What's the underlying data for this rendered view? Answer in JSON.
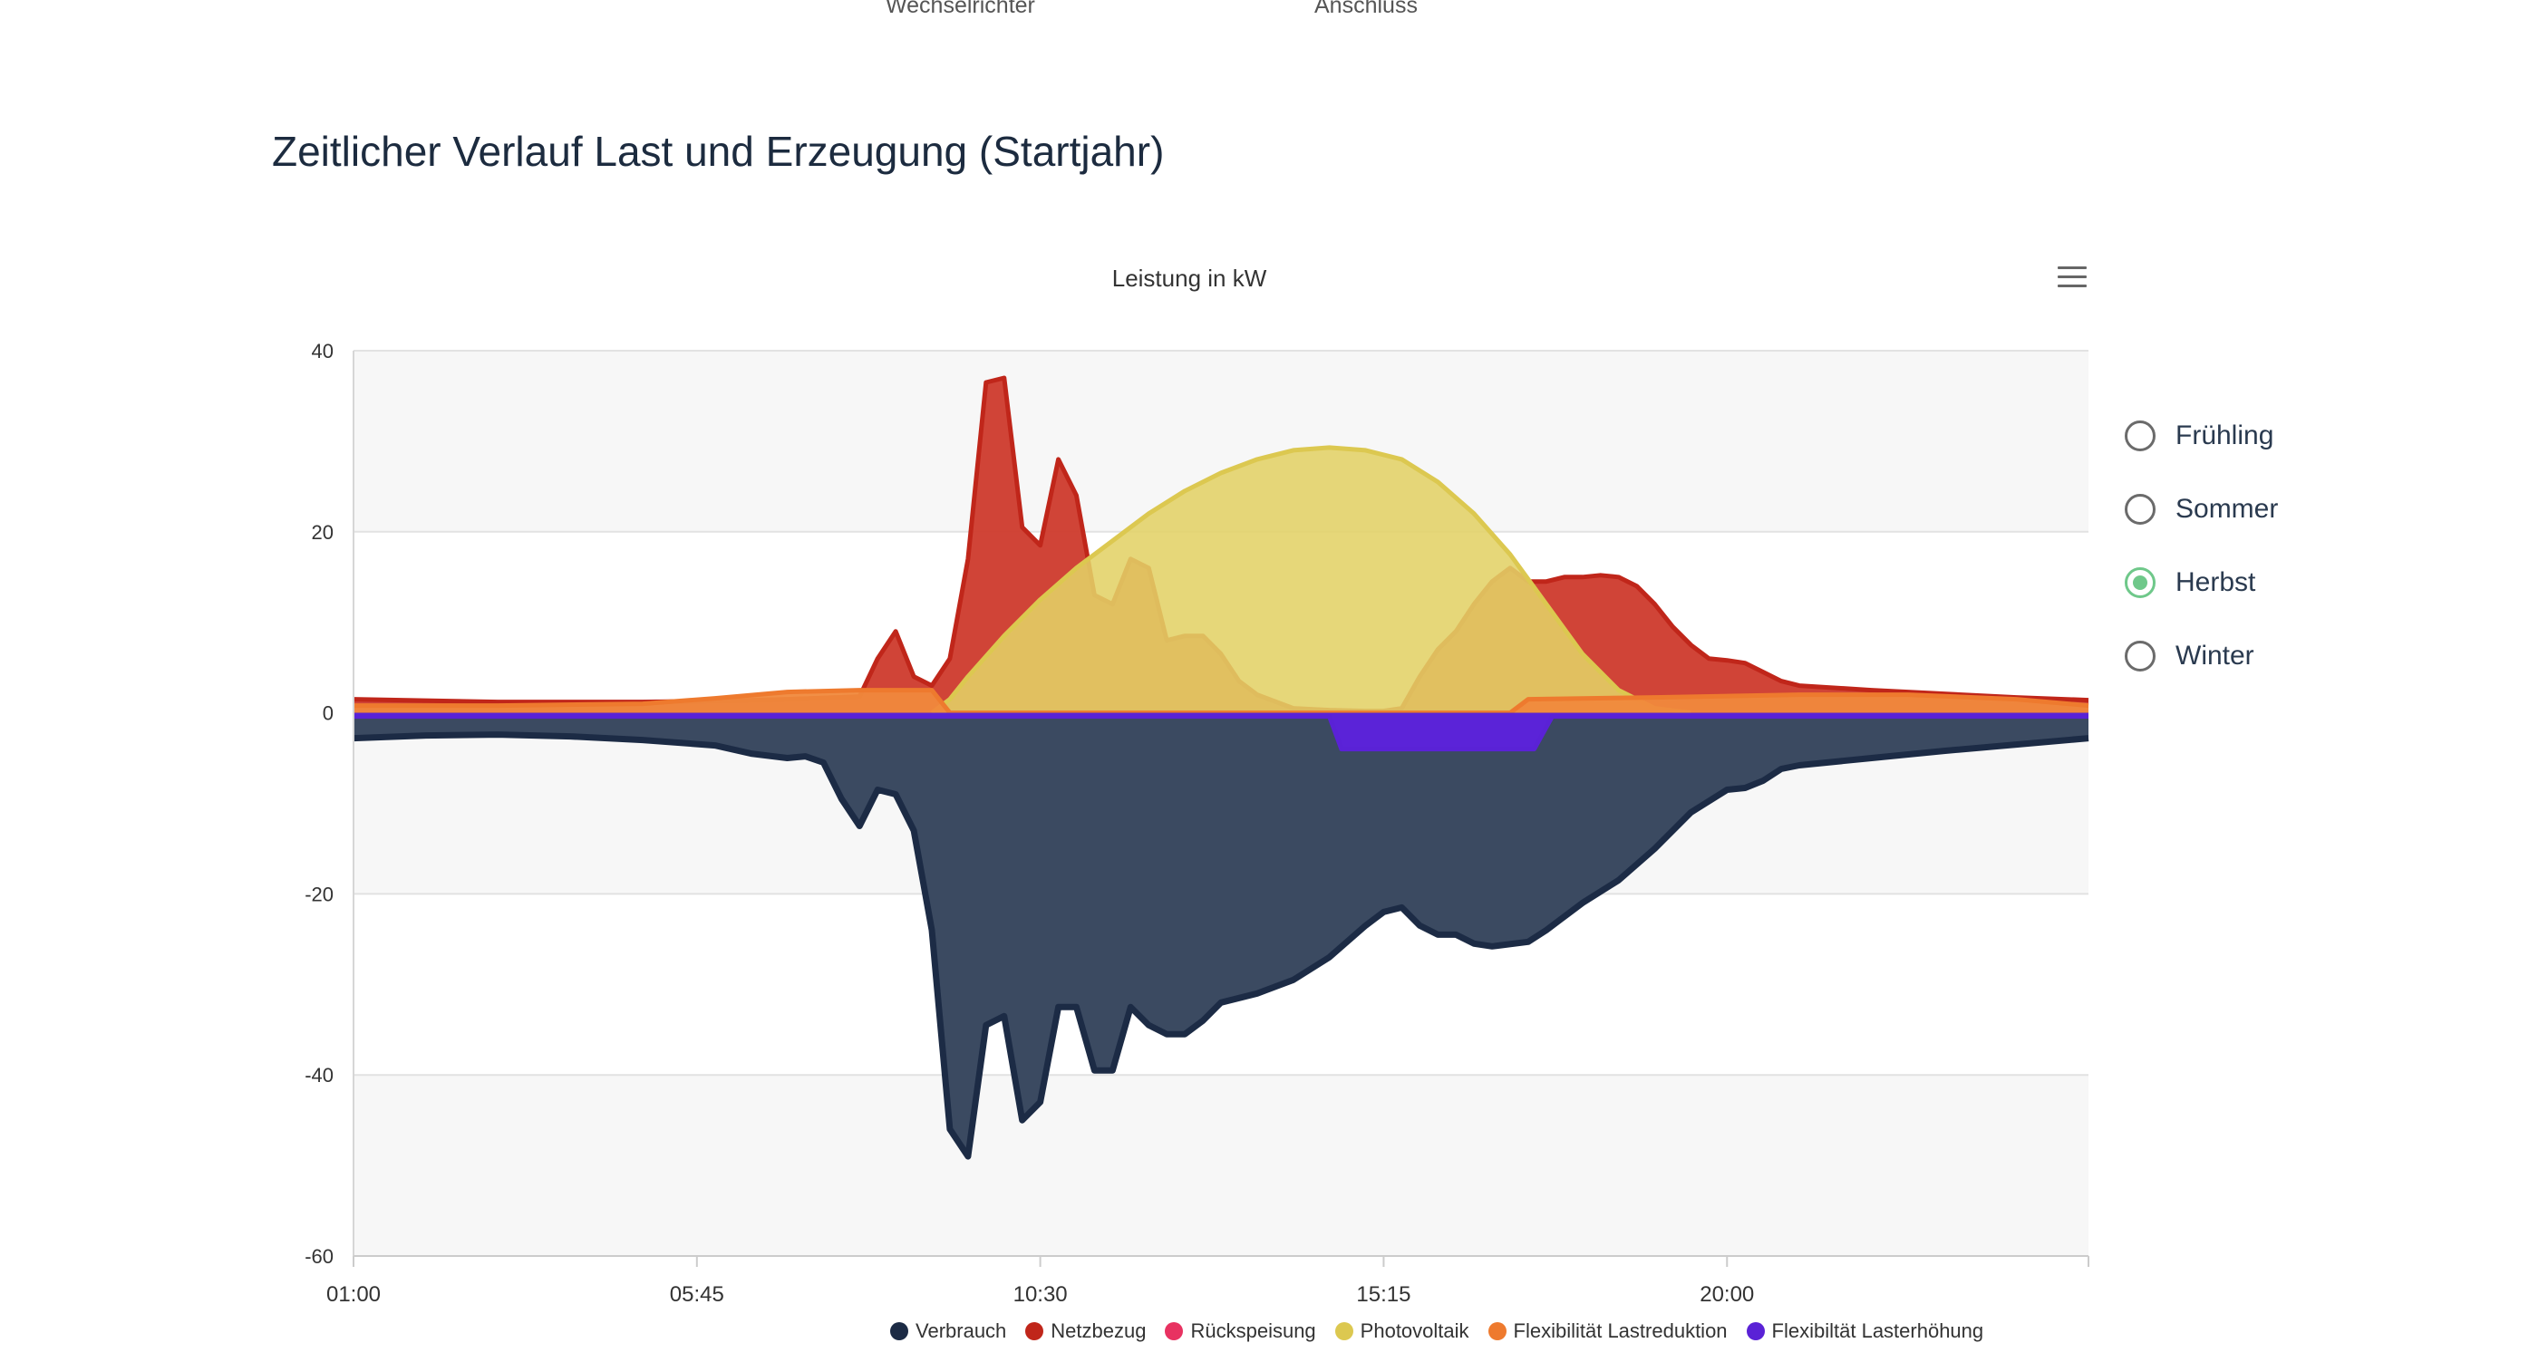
{
  "header": {
    "top_label_1": "Wechselrichter",
    "top_label_2": "Anschluss",
    "section_title": "Zeitlicher Verlauf Last und Erzeugung (Startjahr)"
  },
  "menu": {
    "icon": "hamburger-menu-icon"
  },
  "season_selector": {
    "options": [
      {
        "label": "Frühling",
        "checked": false
      },
      {
        "label": "Sommer",
        "checked": false
      },
      {
        "label": "Herbst",
        "checked": true
      },
      {
        "label": "Winter",
        "checked": false
      }
    ],
    "selected": "Herbst",
    "checked_color": "#6fc88a"
  },
  "chart_data": {
    "type": "area",
    "title": "Leistung in kW",
    "xlabel": "",
    "ylabel": "",
    "ylim": [
      -60,
      40
    ],
    "yticks": [
      40,
      20,
      0,
      -20,
      -40,
      -60
    ],
    "xlim": [
      0,
      1440
    ],
    "xticks": [
      {
        "t": 0,
        "label": "01:00"
      },
      {
        "t": 285,
        "label": "05:45"
      },
      {
        "t": 570,
        "label": "10:30"
      },
      {
        "t": 855,
        "label": "15:15"
      },
      {
        "t": 1140,
        "label": "20:00"
      }
    ],
    "grid": true,
    "legend_position": "bottom-right",
    "x_unit": "minutes since 01:00",
    "series": [
      {
        "name": "Verbrauch",
        "color": "#1c2b45",
        "fill": "#3b4a61",
        "points": [
          [
            0,
            -2.8
          ],
          [
            60,
            -2.5
          ],
          [
            120,
            -2.4
          ],
          [
            180,
            -2.6
          ],
          [
            240,
            -3.0
          ],
          [
            300,
            -3.6
          ],
          [
            330,
            -4.5
          ],
          [
            360,
            -5.0
          ],
          [
            375,
            -4.8
          ],
          [
            390,
            -5.5
          ],
          [
            405,
            -9.5
          ],
          [
            420,
            -12.5
          ],
          [
            435,
            -8.5
          ],
          [
            450,
            -9.0
          ],
          [
            465,
            -13.0
          ],
          [
            480,
            -24.0
          ],
          [
            495,
            -46.0
          ],
          [
            510,
            -49.0
          ],
          [
            525,
            -34.5
          ],
          [
            540,
            -33.5
          ],
          [
            555,
            -45.0
          ],
          [
            570,
            -43.0
          ],
          [
            585,
            -32.5
          ],
          [
            600,
            -32.5
          ],
          [
            615,
            -39.5
          ],
          [
            630,
            -39.5
          ],
          [
            645,
            -32.5
          ],
          [
            660,
            -34.5
          ],
          [
            675,
            -35.5
          ],
          [
            690,
            -35.5
          ],
          [
            705,
            -34.0
          ],
          [
            720,
            -32.0
          ],
          [
            750,
            -31.0
          ],
          [
            780,
            -29.5
          ],
          [
            810,
            -27.0
          ],
          [
            840,
            -23.5
          ],
          [
            855,
            -22.0
          ],
          [
            870,
            -21.5
          ],
          [
            885,
            -23.5
          ],
          [
            900,
            -24.5
          ],
          [
            915,
            -24.5
          ],
          [
            930,
            -25.5
          ],
          [
            945,
            -25.8
          ],
          [
            975,
            -25.3
          ],
          [
            990,
            -24.0
          ],
          [
            1005,
            -22.5
          ],
          [
            1020,
            -21.0
          ],
          [
            1050,
            -18.5
          ],
          [
            1080,
            -15.0
          ],
          [
            1110,
            -11.0
          ],
          [
            1140,
            -8.5
          ],
          [
            1155,
            -8.3
          ],
          [
            1170,
            -7.5
          ],
          [
            1185,
            -6.2
          ],
          [
            1200,
            -5.8
          ],
          [
            1260,
            -5.0
          ],
          [
            1320,
            -4.2
          ],
          [
            1380,
            -3.5
          ],
          [
            1440,
            -2.8
          ]
        ]
      },
      {
        "name": "Netzbezug",
        "color": "#c0261a",
        "fill": "#cd3a2c",
        "points": [
          [
            0,
            1.5
          ],
          [
            120,
            1.2
          ],
          [
            240,
            1.2
          ],
          [
            300,
            1.3
          ],
          [
            360,
            1.5
          ],
          [
            420,
            1.8
          ],
          [
            435,
            6.0
          ],
          [
            450,
            9.0
          ],
          [
            465,
            4.0
          ],
          [
            480,
            3.0
          ],
          [
            495,
            6.0
          ],
          [
            510,
            17.0
          ],
          [
            525,
            36.5
          ],
          [
            540,
            37.0
          ],
          [
            555,
            20.5
          ],
          [
            570,
            18.5
          ],
          [
            585,
            28.0
          ],
          [
            600,
            24.0
          ],
          [
            615,
            13.0
          ],
          [
            630,
            12.0
          ],
          [
            645,
            17.0
          ],
          [
            660,
            16.0
          ],
          [
            675,
            8.0
          ],
          [
            690,
            8.5
          ],
          [
            705,
            8.5
          ],
          [
            720,
            6.5
          ],
          [
            735,
            3.5
          ],
          [
            750,
            2.0
          ],
          [
            780,
            0.5
          ],
          [
            810,
            0.3
          ],
          [
            840,
            0.2
          ],
          [
            855,
            0.2
          ],
          [
            870,
            0.5
          ],
          [
            885,
            4.0
          ],
          [
            900,
            7.0
          ],
          [
            915,
            9.0
          ],
          [
            930,
            12.0
          ],
          [
            945,
            14.5
          ],
          [
            960,
            16.0
          ],
          [
            975,
            14.5
          ],
          [
            990,
            14.5
          ],
          [
            1005,
            15.0
          ],
          [
            1020,
            15.0
          ],
          [
            1035,
            15.2
          ],
          [
            1050,
            15.0
          ],
          [
            1065,
            14.0
          ],
          [
            1080,
            12.0
          ],
          [
            1095,
            9.5
          ],
          [
            1110,
            7.5
          ],
          [
            1125,
            6.0
          ],
          [
            1140,
            5.8
          ],
          [
            1155,
            5.5
          ],
          [
            1170,
            4.5
          ],
          [
            1185,
            3.5
          ],
          [
            1200,
            3.0
          ],
          [
            1260,
            2.5
          ],
          [
            1320,
            2.1
          ],
          [
            1380,
            1.7
          ],
          [
            1440,
            1.4
          ]
        ]
      },
      {
        "name": "Rückspeisung",
        "color": "#e83261",
        "fill": "#e83261",
        "points": [
          [
            0,
            0
          ],
          [
            1440,
            0
          ]
        ]
      },
      {
        "name": "Photovoltaik",
        "color": "#dcc850",
        "fill": "#e2d266",
        "points": [
          [
            480,
            0
          ],
          [
            495,
            1.5
          ],
          [
            510,
            4.0
          ],
          [
            540,
            8.5
          ],
          [
            570,
            12.5
          ],
          [
            600,
            16.0
          ],
          [
            630,
            19.0
          ],
          [
            660,
            22.0
          ],
          [
            690,
            24.5
          ],
          [
            720,
            26.5
          ],
          [
            750,
            28.0
          ],
          [
            780,
            29.0
          ],
          [
            810,
            29.3
          ],
          [
            840,
            29.0
          ],
          [
            870,
            28.0
          ],
          [
            900,
            25.5
          ],
          [
            930,
            22.0
          ],
          [
            960,
            17.5
          ],
          [
            990,
            12.0
          ],
          [
            1020,
            6.5
          ],
          [
            1050,
            2.5
          ],
          [
            1080,
            0.5
          ],
          [
            1110,
            0
          ]
        ]
      },
      {
        "name": "Flexibilität Lastreduktion",
        "color": "#ee7a2e",
        "fill": "#f0893c",
        "points": [
          [
            0,
            0.8
          ],
          [
            120,
            0.8
          ],
          [
            240,
            1.0
          ],
          [
            300,
            1.6
          ],
          [
            360,
            2.3
          ],
          [
            420,
            2.5
          ],
          [
            480,
            2.5
          ],
          [
            495,
            0
          ],
          [
            810,
            0
          ],
          [
            960,
            0
          ],
          [
            975,
            1.5
          ],
          [
            1080,
            1.7
          ],
          [
            1200,
            2.0
          ],
          [
            1290,
            2.0
          ],
          [
            1380,
            1.5
          ],
          [
            1440,
            0.8
          ]
        ]
      },
      {
        "name": "Flexibiltät Lasterhöhung",
        "color": "#5a22d6",
        "fill": "#5b23d8",
        "points": [
          [
            0,
            -0.4
          ],
          [
            810,
            -0.4
          ],
          [
            820,
            -4.0
          ],
          [
            980,
            -4.0
          ],
          [
            995,
            -0.4
          ],
          [
            1440,
            -0.4
          ]
        ]
      }
    ]
  }
}
